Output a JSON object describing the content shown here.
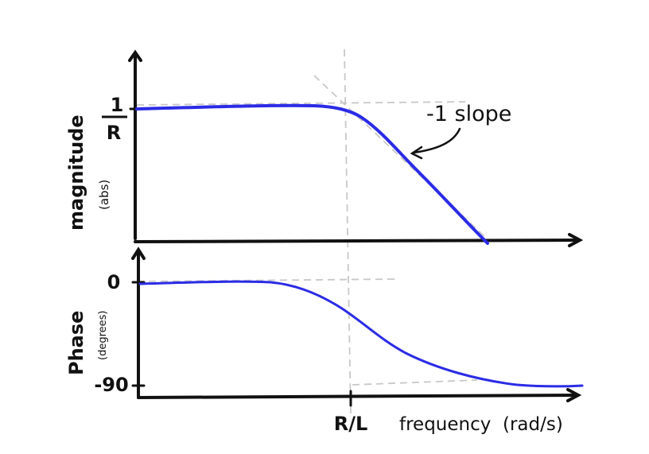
{
  "magnitude_plot": {
    "ylabel": "magnitude",
    "ylabel_unit": "(abs)",
    "tick_top": "1",
    "tick_bottom": "R",
    "annotation": "-1 slope"
  },
  "phase_plot": {
    "ylabel": "Phase",
    "ylabel_unit": "(degrees)",
    "tick_zero": "0",
    "tick_min": "-90"
  },
  "x_axis": {
    "tick_label": "R/L",
    "label": "frequency",
    "unit": "(rad/s)"
  },
  "colors": {
    "curve": "#2b2be6",
    "axis": "#111111",
    "guide": "#c8c8c8"
  }
}
